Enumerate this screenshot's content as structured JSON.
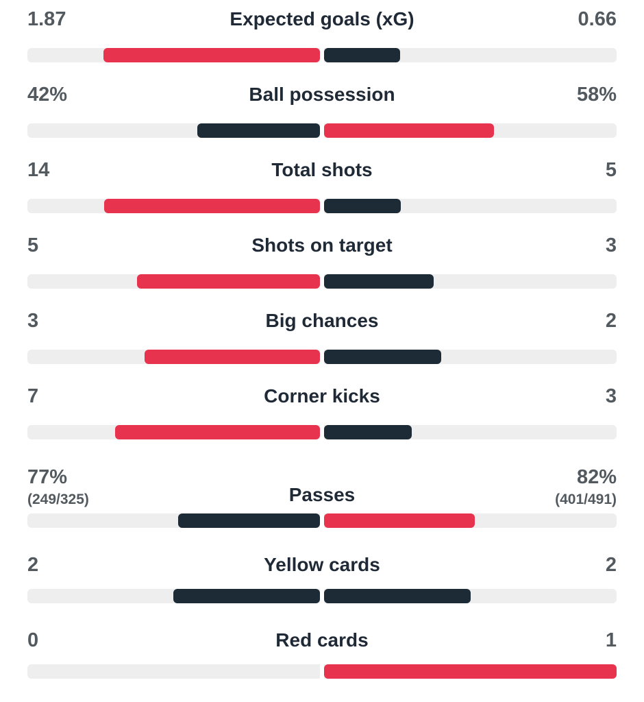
{
  "colors": {
    "highlight": "#e8334f",
    "secondary": "#1d2b36",
    "track": "#eeeeee",
    "value_text": "#52595f",
    "title_text": "#1f2a36"
  },
  "stats": [
    {
      "title": "Expected goals (xG)",
      "home": "1.87",
      "away": "0.66",
      "home_share": 0.74,
      "away_share": 0.26,
      "home_color": "highlight",
      "away_color": "secondary"
    },
    {
      "title": "Ball possession",
      "home": "42%",
      "away": "58%",
      "home_share": 0.42,
      "away_share": 0.58,
      "home_color": "secondary",
      "away_color": "highlight"
    },
    {
      "title": "Total shots",
      "home": "14",
      "away": "5",
      "home_share": 0.737,
      "away_share": 0.263,
      "home_color": "highlight",
      "away_color": "secondary"
    },
    {
      "title": "Shots on target",
      "home": "5",
      "away": "3",
      "home_share": 0.625,
      "away_share": 0.375,
      "home_color": "highlight",
      "away_color": "secondary"
    },
    {
      "title": "Big chances",
      "home": "3",
      "away": "2",
      "home_share": 0.6,
      "away_share": 0.4,
      "home_color": "highlight",
      "away_color": "secondary"
    },
    {
      "title": "Corner kicks",
      "home": "7",
      "away": "3",
      "home_share": 0.7,
      "away_share": 0.3,
      "home_color": "highlight",
      "away_color": "secondary"
    },
    {
      "title": "Passes",
      "home": "77%",
      "away": "82%",
      "home_sub": "(249/325)",
      "away_sub": "(401/491)",
      "home_share": 0.485,
      "away_share": 0.515,
      "home_color": "secondary",
      "away_color": "highlight"
    },
    {
      "title": "Yellow cards",
      "home": "2",
      "away": "2",
      "home_share": 0.5,
      "away_share": 0.5,
      "home_color": "secondary",
      "away_color": "secondary"
    },
    {
      "title": "Red cards",
      "home": "0",
      "away": "1",
      "home_share": 0.0,
      "away_share": 1.0,
      "home_color": "highlight",
      "away_color": "highlight"
    }
  ]
}
